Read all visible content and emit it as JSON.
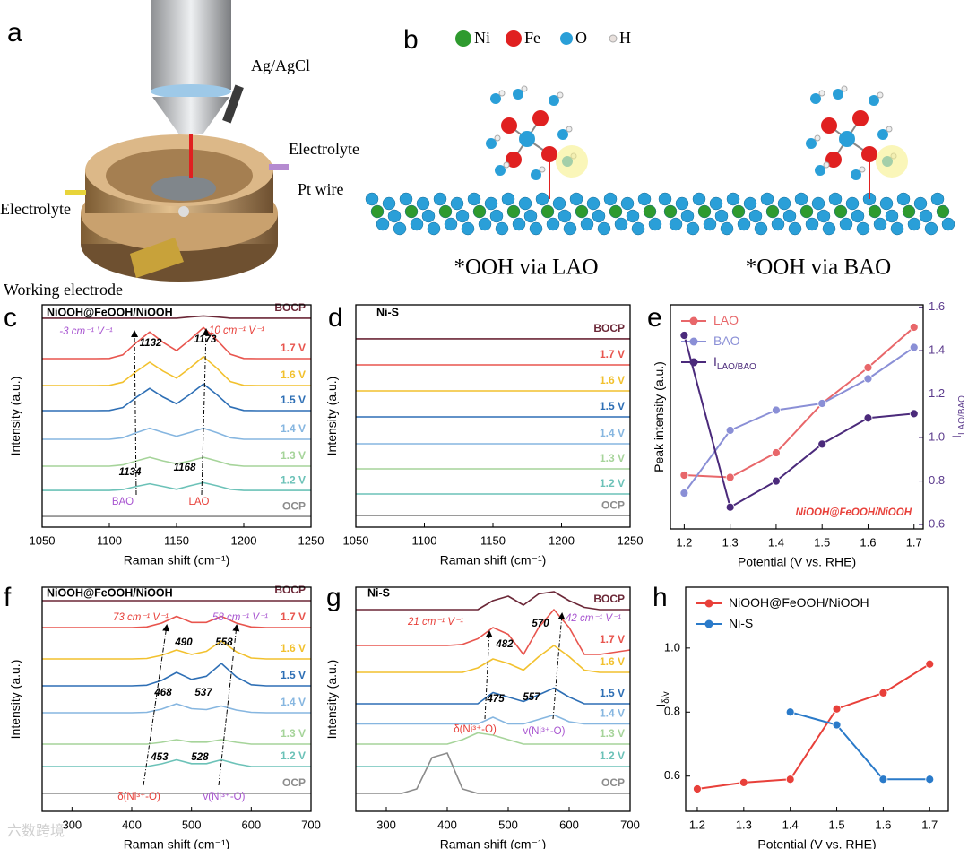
{
  "setup": {
    "label": "a",
    "ag_agcl": "Ag/AgCl",
    "electrolyte_right": "Electrolyte",
    "pt_wire": "Pt wire",
    "electrolyte_left": "Electrolyte",
    "working_electrode": "Working electrode"
  },
  "structures": {
    "label": "b",
    "legend": [
      "Ni",
      "Fe",
      "O",
      "H"
    ],
    "captions": [
      "*OOH via LAO",
      "*OOH via BAO"
    ]
  },
  "watermark": "六数跨境",
  "chart_data": [
    {
      "type": "line",
      "label": "c",
      "xlabel": "Raman shift (cm⁻¹)",
      "ylabel": "Intensity (a.u.)",
      "x": [
        1050,
        1060,
        1070,
        1080,
        1090,
        1100,
        1110,
        1120,
        1130,
        1140,
        1150,
        1160,
        1170,
        1180,
        1190,
        1200,
        1210,
        1220,
        1230,
        1240,
        1250
      ],
      "xlim": [
        1050,
        1250
      ],
      "xticks": [
        1050,
        1100,
        1150,
        1200,
        1250
      ],
      "ylim": [
        0,
        10
      ],
      "series": [
        {
          "name": "BOCP",
          "color": "#6b2737",
          "values": [
            9.4,
            9.4,
            9.4,
            9.4,
            9.4,
            9.4,
            9.4,
            9.4,
            9.4,
            9.4,
            9.4,
            9.45,
            9.5,
            9.45,
            9.4,
            9.4,
            9.4,
            9.4,
            9.4,
            9.4,
            9.4
          ]
        },
        {
          "name": "1.7 V",
          "color": "#e8554e",
          "values": [
            7.58,
            7.58,
            7.58,
            7.58,
            7.58,
            7.59,
            7.75,
            8.3,
            8.78,
            8.31,
            7.94,
            8.43,
            8.98,
            8.42,
            7.78,
            7.59,
            7.58,
            7.58,
            7.58,
            7.58,
            7.58
          ]
        },
        {
          "name": "1.6 V",
          "color": "#f2c12e",
          "values": [
            6.37,
            6.37,
            6.37,
            6.37,
            6.37,
            6.38,
            6.52,
            7.0,
            7.42,
            7.02,
            6.7,
            7.16,
            7.67,
            7.15,
            6.55,
            6.38,
            6.37,
            6.37,
            6.37,
            6.37,
            6.37
          ]
        },
        {
          "name": "1.5 V",
          "color": "#2e6fb5",
          "values": [
            5.24,
            5.24,
            5.24,
            5.24,
            5.24,
            5.25,
            5.38,
            5.84,
            6.24,
            5.85,
            5.55,
            5.97,
            6.44,
            5.96,
            5.41,
            5.25,
            5.24,
            5.24,
            5.24,
            5.24,
            5.24
          ]
        },
        {
          "name": "1.4 V",
          "color": "#86b6e0",
          "values": [
            3.95,
            3.95,
            3.95,
            3.95,
            3.95,
            3.95,
            4.02,
            4.25,
            4.45,
            4.26,
            4.09,
            4.26,
            4.45,
            4.25,
            4.02,
            3.95,
            3.95,
            3.95,
            3.95,
            3.95,
            3.95
          ]
        },
        {
          "name": "1.3 V",
          "color": "#a6d49a",
          "values": [
            2.74,
            2.74,
            2.74,
            2.74,
            2.74,
            2.74,
            2.8,
            2.98,
            3.14,
            2.98,
            2.85,
            2.98,
            3.14,
            2.98,
            2.8,
            2.74,
            2.74,
            2.74,
            2.74,
            2.74,
            2.74
          ]
        },
        {
          "name": "1.2 V",
          "color": "#6cc2b8",
          "values": [
            1.65,
            1.65,
            1.65,
            1.65,
            1.65,
            1.65,
            1.69,
            1.83,
            1.95,
            1.83,
            1.7,
            1.86,
            2.0,
            1.86,
            1.7,
            1.65,
            1.65,
            1.65,
            1.65,
            1.65,
            1.65
          ]
        },
        {
          "name": "OCP",
          "color": "#8c8c8c",
          "values": [
            0.48,
            0.48,
            0.48,
            0.48,
            0.48,
            0.48,
            0.48,
            0.48,
            0.48,
            0.48,
            0.48,
            0.48,
            0.48,
            0.48,
            0.48,
            0.48,
            0.48,
            0.48,
            0.48,
            0.48,
            0.48
          ]
        }
      ],
      "annotations": [
        {
          "text": "NiOOH@FeOOH/NiOOH"
        },
        {
          "text": "-3 cm⁻¹ V⁻¹",
          "color": "#a855d0"
        },
        {
          "text": "10 cm⁻¹ V⁻¹",
          "color": "#e8403a"
        },
        {
          "text": "1132"
        },
        {
          "text": "1173"
        },
        {
          "text": "1134"
        },
        {
          "text": "1168"
        },
        {
          "text": "BAO",
          "color": "#a855d0"
        },
        {
          "text": "LAO",
          "color": "#e8403a"
        }
      ]
    },
    {
      "type": "line",
      "label": "d",
      "xlabel": "Raman shift (cm⁻¹)",
      "ylabel": "Intensity (a.u.)",
      "x": [
        1050,
        1100,
        1150,
        1200,
        1250
      ],
      "xlim": [
        1050,
        1250
      ],
      "xticks": [
        1050,
        1100,
        1150,
        1200,
        1250
      ],
      "ylim": [
        0,
        10
      ],
      "series": [
        {
          "name": "BOCP",
          "color": "#6b2737",
          "values": [
            8.47,
            8.47,
            8.47,
            8.47,
            8.47
          ]
        },
        {
          "name": "1.7 V",
          "color": "#e8554e",
          "values": [
            7.3,
            7.3,
            7.3,
            7.3,
            7.3
          ]
        },
        {
          "name": "1.6 V",
          "color": "#f2c12e",
          "values": [
            6.13,
            6.13,
            6.13,
            6.13,
            6.13
          ]
        },
        {
          "name": "1.5 V",
          "color": "#2e6fb5",
          "values": [
            4.96,
            4.96,
            4.96,
            4.96,
            4.96
          ]
        },
        {
          "name": "1.4 V",
          "color": "#86b6e0",
          "values": [
            3.75,
            3.75,
            3.75,
            3.75,
            3.75
          ]
        },
        {
          "name": "1.3 V",
          "color": "#a6d49a",
          "values": [
            2.62,
            2.62,
            2.62,
            2.62,
            2.62
          ]
        },
        {
          "name": "1.2 V",
          "color": "#6cc2b8",
          "values": [
            1.49,
            1.49,
            1.49,
            1.49,
            1.49
          ]
        },
        {
          "name": "OCP",
          "color": "#8c8c8c",
          "values": [
            0.52,
            0.52,
            0.52,
            0.52,
            0.52
          ]
        }
      ],
      "annotations": [
        {
          "text": "Ni-S"
        }
      ]
    },
    {
      "type": "line",
      "label": "e",
      "markers": true,
      "legend": "upper left",
      "x": [
        1.2,
        1.3,
        1.4,
        1.5,
        1.6,
        1.7
      ],
      "xlim": [
        1.17,
        1.72
      ],
      "xticks": [
        1.2,
        1.3,
        1.4,
        1.5,
        1.6,
        1.7
      ],
      "ylim": [
        0,
        1
      ],
      "y2lim": [
        0.58,
        1.61
      ],
      "y2ticks": [
        0.6,
        0.8,
        {
          "value": 1,
          "label": "1.0"
        },
        1.2,
        1.4,
        1.6
      ],
      "xlabel": "Potential (V vs. RHE)",
      "ylabel": "Peak intensity (a.u.)",
      "y2label": "I",
      "y2label_sub": "LAO/BAO",
      "series": [
        {
          "name": "LAO",
          "color": "#e8676a",
          "values": [
            0.24,
            0.23,
            0.34,
            0.56,
            0.72,
            0.9
          ]
        },
        {
          "name": "BAO",
          "color": "#8a8fd6",
          "values": [
            0.16,
            0.44,
            0.53,
            0.56,
            0.67,
            0.81
          ]
        },
        {
          "name": "I",
          "name_sub": "LAO/BAO",
          "color": "#4b2a7b",
          "axis": "y2",
          "values": [
            1.47,
            0.68,
            0.8,
            0.97,
            1.09,
            1.11
          ]
        }
      ],
      "annotations": [
        {
          "text": "NiOOH@FeOOH/NiOOH",
          "color": "#e8403a"
        }
      ]
    },
    {
      "type": "line",
      "label": "f",
      "xlabel": "Raman shift (cm⁻¹)",
      "ylabel": "Intensity (a.u.)",
      "x": [
        250,
        275,
        300,
        325,
        350,
        375,
        400,
        425,
        450,
        475,
        500,
        525,
        550,
        575,
        600,
        625,
        650,
        675,
        700
      ],
      "xlim": [
        250,
        700
      ],
      "xticks": [
        300,
        400,
        500,
        600,
        700
      ],
      "ylim": [
        0,
        10
      ],
      "series": [
        {
          "name": "BOCP",
          "color": "#6b2737",
          "values": [
            9.4,
            9.4,
            9.4,
            9.4,
            9.4,
            9.4,
            9.4,
            9.4,
            9.4,
            9.4,
            9.4,
            9.4,
            9.4,
            9.4,
            9.4,
            9.4,
            9.4,
            9.4,
            9.4
          ]
        },
        {
          "name": "1.7 V",
          "color": "#e8554e",
          "values": [
            8.2,
            8.2,
            8.2,
            8.2,
            8.2,
            8.2,
            8.2,
            8.23,
            8.4,
            8.7,
            8.43,
            8.43,
            8.7,
            8.4,
            8.23,
            8.2,
            8.2,
            8.2,
            8.2
          ]
        },
        {
          "name": "1.6 V",
          "color": "#f2c12e",
          "values": [
            6.8,
            6.8,
            6.8,
            6.8,
            6.8,
            6.8,
            6.8,
            6.82,
            6.96,
            7.2,
            7.0,
            7.14,
            7.6,
            7.12,
            6.84,
            6.8,
            6.8,
            6.8,
            6.8
          ]
        },
        {
          "name": "1.5 V",
          "color": "#2e6fb5",
          "values": [
            5.6,
            5.6,
            5.6,
            5.6,
            5.6,
            5.6,
            5.6,
            5.63,
            5.84,
            6.2,
            5.89,
            6.03,
            6.6,
            6.0,
            5.65,
            5.6,
            5.6,
            5.6,
            5.6
          ]
        },
        {
          "name": "1.4 V",
          "color": "#86b6e0",
          "values": [
            4.4,
            4.4,
            4.4,
            4.4,
            4.4,
            4.4,
            4.4,
            4.42,
            4.56,
            4.8,
            4.58,
            4.54,
            4.7,
            4.52,
            4.42,
            4.4,
            4.4,
            4.4,
            4.4
          ]
        },
        {
          "name": "1.3 V",
          "color": "#a6d49a",
          "values": [
            3.0,
            3.0,
            3.0,
            3.0,
            3.0,
            3.0,
            3.0,
            3.0,
            3.08,
            3.2,
            3.09,
            3.09,
            3.2,
            3.08,
            3.0,
            3.0,
            3.0,
            3.0,
            3.0
          ]
        },
        {
          "name": "1.2 V",
          "color": "#6cc2b8",
          "values": [
            2.0,
            2.0,
            2.0,
            2.0,
            2.0,
            2.0,
            2.0,
            2.0,
            2.12,
            2.3,
            2.13,
            2.13,
            2.3,
            2.12,
            2.0,
            2.0,
            2.0,
            2.0,
            2.0
          ]
        },
        {
          "name": "OCP",
          "color": "#8c8c8c",
          "values": [
            0.8,
            0.8,
            0.8,
            0.8,
            0.8,
            0.8,
            0.8,
            0.8,
            0.8,
            0.8,
            0.8,
            0.8,
            0.8,
            0.8,
            0.8,
            0.8,
            0.8,
            0.8,
            0.8
          ]
        }
      ],
      "annotations": [
        {
          "text": "NiOOH@FeOOH/NiOOH"
        },
        {
          "text": "73 cm⁻¹ V⁻¹",
          "color": "#e8403a"
        },
        {
          "text": "58 cm⁻¹ V⁻¹",
          "color": "#a855d0"
        },
        {
          "text": "490"
        },
        {
          "text": "558"
        },
        {
          "text": "468"
        },
        {
          "text": "537"
        },
        {
          "text": "453"
        },
        {
          "text": "528"
        },
        {
          "text": "δ(Ni³⁺-O)",
          "color": "#e8403a"
        },
        {
          "text": "v(Ni³⁺-O)",
          "color": "#a855d0"
        }
      ]
    },
    {
      "type": "line",
      "label": "g",
      "xlabel": "Raman shift (cm⁻¹)",
      "ylabel": "Intensity (a.u.)",
      "x": [
        250,
        275,
        300,
        325,
        350,
        375,
        400,
        425,
        450,
        475,
        500,
        525,
        550,
        575,
        600,
        625,
        650,
        675,
        700
      ],
      "xlim": [
        250,
        700
      ],
      "xticks": [
        300,
        400,
        500,
        600,
        700
      ],
      "ylim": [
        0,
        10
      ],
      "series": [
        {
          "name": "BOCP",
          "color": "#6b2737",
          "values": [
            9,
            9,
            9,
            9,
            9,
            9,
            9,
            9,
            9,
            9.4,
            9.6,
            9.2,
            9.7,
            9.8,
            9.4,
            9.1,
            9,
            9,
            9
          ]
        },
        {
          "name": "1.7 V",
          "color": "#e8554e",
          "values": [
            7.4,
            7.4,
            7.4,
            7.4,
            7.4,
            7.4,
            7.4,
            7.45,
            7.7,
            8.2,
            7.9,
            7.0,
            8.2,
            9.0,
            8.2,
            7.0,
            7.0,
            7.1,
            7.2
          ]
        },
        {
          "name": "1.6 V",
          "color": "#f2c12e",
          "values": [
            6.2,
            6.2,
            6.2,
            6.2,
            6.2,
            6.2,
            6.2,
            6.2,
            6.4,
            6.8,
            6.6,
            6.3,
            6.9,
            7.4,
            6.9,
            6.3,
            6.2,
            6.2,
            6.2
          ]
        },
        {
          "name": "1.5 V",
          "color": "#2e6fb5",
          "values": [
            4.8,
            4.8,
            4.8,
            4.8,
            4.8,
            4.8,
            4.8,
            4.8,
            4.8,
            5.3,
            5.1,
            4.9,
            5.2,
            5.5,
            5.1,
            4.8,
            4.8,
            4.8,
            4.8
          ]
        },
        {
          "name": "1.4 V",
          "color": "#86b6e0",
          "values": [
            3.9,
            3.9,
            3.9,
            3.9,
            3.9,
            3.9,
            3.9,
            3.9,
            3.9,
            4.2,
            3.9,
            3.9,
            4.1,
            4.3,
            4.0,
            3.9,
            3.9,
            3.9,
            3.9
          ]
        },
        {
          "name": "1.3 V",
          "color": "#a6d49a",
          "values": [
            3.0,
            3.0,
            3.0,
            3.0,
            3.0,
            3.0,
            3.0,
            3.2,
            3.5,
            3.4,
            3.2,
            3.0,
            3.0,
            3.0,
            3.0,
            3.0,
            3.0,
            3.0,
            3.0
          ]
        },
        {
          "name": "1.2 V",
          "color": "#6cc2b8",
          "values": [
            2.0,
            2.0,
            2.0,
            2.0,
            2.0,
            2.0,
            2.0,
            2.0,
            2.0,
            2.0,
            2.0,
            2.0,
            2.0,
            2.0,
            2.0,
            2.0,
            2.0,
            2.0,
            2.0
          ]
        },
        {
          "name": "OCP",
          "color": "#8c8c8c",
          "values": [
            0.8,
            0.8,
            0.8,
            0.8,
            1.0,
            2.4,
            2.6,
            1.0,
            0.8,
            0.8,
            0.8,
            0.8,
            0.8,
            0.8,
            0.8,
            0.8,
            0.8,
            0.8,
            0.8
          ]
        }
      ],
      "annotations": [
        {
          "text": "Ni-S"
        },
        {
          "text": "21 cm⁻¹ V⁻¹",
          "color": "#e8403a"
        },
        {
          "text": "42 cm⁻¹ V⁻¹",
          "color": "#a855d0"
        },
        {
          "text": "482"
        },
        {
          "text": "570"
        },
        {
          "text": "475"
        },
        {
          "text": "557"
        },
        {
          "text": "δ(Ni³⁺-O)",
          "color": "#e8403a"
        },
        {
          "text": "v(Ni³⁺-O)",
          "color": "#a855d0"
        }
      ]
    },
    {
      "type": "line",
      "label": "h",
      "markers": true,
      "legend": "upper left",
      "x": [
        1.2,
        1.3,
        1.4,
        1.5,
        1.6,
        1.7
      ],
      "xlim": [
        1.175,
        1.74
      ],
      "xticks": [
        1.2,
        1.3,
        1.4,
        1.5,
        1.6,
        1.7
      ],
      "ylim": [
        0.49,
        1.19
      ],
      "yticks": [
        0.6,
        0.8,
        {
          "value": 1,
          "label": "1.0"
        }
      ],
      "xlabel": "Potential (V vs. RHE)",
      "ylabel": "I",
      "ylabel_sub": "δ/v",
      "series": [
        {
          "name": "NiOOH@FeOOH/NiOOH",
          "color": "#e8403a",
          "values": [
            0.56,
            0.58,
            0.59,
            0.81,
            0.86,
            0.95
          ]
        },
        {
          "name": "Ni-S",
          "color": "#2a7ac9",
          "values": [
            null,
            null,
            0.8,
            0.76,
            0.59,
            0.59
          ]
        }
      ]
    }
  ]
}
